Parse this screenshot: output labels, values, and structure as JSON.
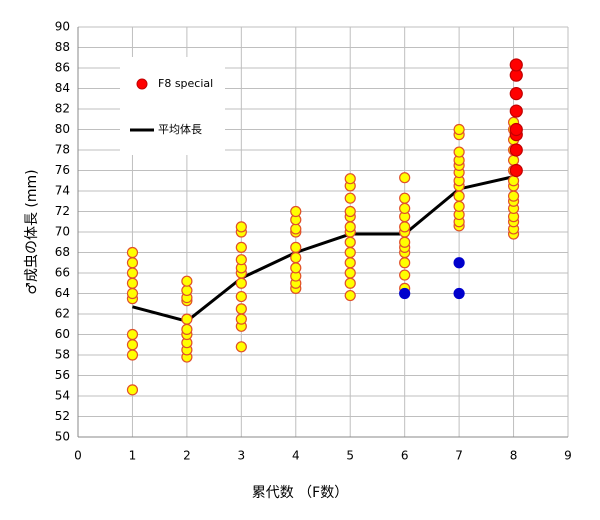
{
  "chart_data": {
    "type": "scatter",
    "xlabel": "累代数 （F数）",
    "ylabel": "♂成虫の体長 (mm)",
    "xlim": [
      0,
      9
    ],
    "xticks": [
      0,
      1,
      2,
      3,
      4,
      5,
      6,
      7,
      8,
      9
    ],
    "ylim": [
      50,
      90
    ],
    "yticks": [
      50,
      52,
      54,
      56,
      58,
      60,
      62,
      64,
      66,
      68,
      70,
      72,
      74,
      76,
      78,
      80,
      82,
      84,
      86,
      88,
      90
    ],
    "grid": true,
    "legend": "upper left",
    "series": [
      {
        "type": "scatter",
        "color": "#ffff00",
        "edge_color": "#e0502a",
        "x": [
          1,
          1,
          1,
          1,
          1,
          1,
          1,
          1,
          1,
          1,
          2,
          2,
          2,
          2,
          2,
          2,
          2,
          2,
          2,
          2,
          3,
          3,
          3,
          3,
          3,
          3,
          3,
          3,
          3,
          3,
          3,
          3,
          4,
          4,
          4,
          4,
          4,
          4,
          4,
          4,
          4,
          4,
          5,
          5,
          5,
          5,
          5,
          5,
          5,
          5,
          5,
          5,
          5,
          5,
          5,
          6,
          6,
          6,
          6,
          6,
          6,
          6,
          6,
          6,
          6,
          6,
          6,
          7,
          7,
          7,
          7,
          7,
          7,
          7,
          7,
          7,
          7,
          7,
          7,
          7,
          8,
          8,
          8,
          8,
          8,
          8,
          8,
          8,
          8,
          8,
          8,
          8,
          8,
          8,
          8
        ],
        "values": [
          54.6,
          58,
          59,
          60,
          63.5,
          64,
          65,
          66,
          67,
          68,
          57.8,
          58.5,
          59.2,
          60,
          60.5,
          61.5,
          63.3,
          63.6,
          64.3,
          65.2,
          58.8,
          60.8,
          61.5,
          62.5,
          63.7,
          65,
          66,
          66.5,
          67.3,
          68.5,
          70,
          70.5,
          64.5,
          65,
          65.7,
          66.5,
          67.5,
          68.5,
          70,
          70.3,
          71.2,
          72,
          63.8,
          65,
          66,
          67,
          68,
          69,
          70,
          70.5,
          71.5,
          72,
          73.3,
          74.5,
          75.2,
          64.5,
          65.8,
          67,
          68,
          68.5,
          69,
          70,
          70.5,
          71.5,
          72.3,
          73.3,
          75.3,
          70.6,
          71,
          71.7,
          72.5,
          73.5,
          74.5,
          75,
          75.8,
          76.5,
          77,
          77.8,
          79.5,
          80,
          69.8,
          70.3,
          71,
          71.5,
          72.3,
          73,
          73.5,
          74.5,
          75,
          76,
          77,
          78,
          79,
          80,
          80.7
        ]
      },
      {
        "type": "scatter",
        "color": "#0000cc",
        "edge_color": "#0000cc",
        "x": [
          6,
          7,
          7
        ],
        "values": [
          64,
          67,
          64
        ]
      },
      {
        "type": "scatter",
        "name": "F8 special",
        "color": "#ff0000",
        "edge_color": "#c00000",
        "x": [
          8.05,
          8.05,
          8.05,
          8.05,
          8.05,
          8.05,
          8.05,
          8.05
        ],
        "values": [
          76,
          78,
          79.5,
          80,
          81.8,
          83.5,
          85.3,
          86.3
        ]
      },
      {
        "type": "line",
        "name": "平均体長",
        "color": "#000000",
        "x": [
          1,
          2,
          3,
          4,
          5,
          6,
          7,
          8
        ],
        "values": [
          62.7,
          61.3,
          65.5,
          68,
          69.8,
          69.8,
          74.2,
          75.4
        ]
      }
    ]
  }
}
